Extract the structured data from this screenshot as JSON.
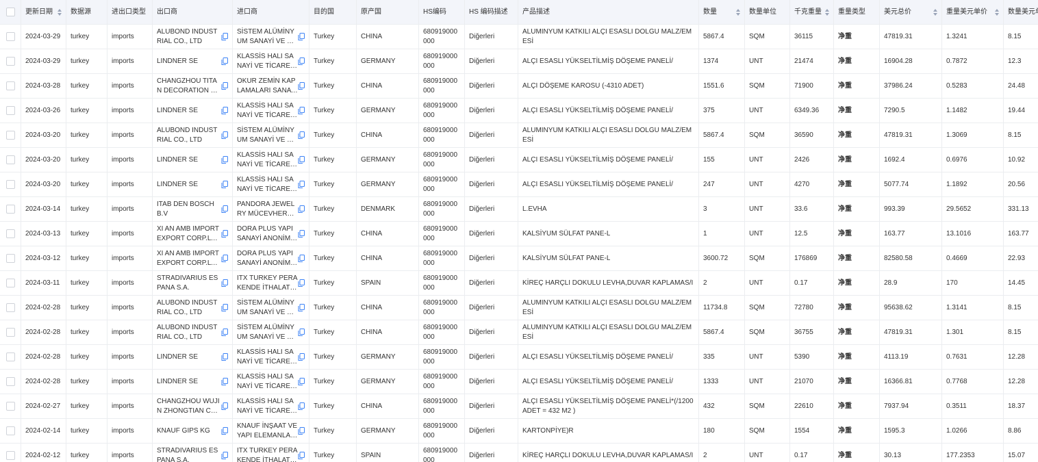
{
  "table": {
    "headers": [
      "更新日期",
      "数据源",
      "进出口类型",
      "出口商",
      "进口商",
      "目的国",
      "原产国",
      "HS编码",
      "HS 编码描述",
      "产品描述",
      "数量",
      "数量单位",
      "千克重量",
      "重量类型",
      "美元总价",
      "重量美元单价",
      "数量美元单价"
    ],
    "rows": [
      [
        "2024-03-29",
        "turkey",
        "imports",
        "ALUBOND INDUSTRIAL CO., LTD",
        "SİSTEM ALÜMİNYUM SANAYİ VE TİCARET A",
        "Turkey",
        "CHINA",
        "680919000000",
        "Diğerleri",
        "ALUMINYUM KATKILI ALÇI ESASLI DOLGU MALZ/EMESİ",
        "5867.4",
        "SQM",
        "36115",
        "净重",
        "47819.31",
        "1.3241",
        "8.15"
      ],
      [
        "2024-03-29",
        "turkey",
        "imports",
        "LINDNER SE",
        "KLASSİS HALI SANAYİ VE TİCARET ANONİM",
        "Turkey",
        "GERMANY",
        "680919000000",
        "Diğerleri",
        "ALÇI ESASLI YÜKSELTİLMİŞ DÖŞEME PANELİ/",
        "1374",
        "UNT",
        "21474",
        "净重",
        "16904.28",
        "0.7872",
        "12.3"
      ],
      [
        "2024-03-28",
        "turkey",
        "imports",
        "CHANGZHOU TITAN DECORATION MATERIAL",
        "OKUR ZEMİN KAPLAMALARI SANAYİ VE TİC",
        "Turkey",
        "CHINA",
        "680919000000",
        "Diğerleri",
        "ALÇI DÖŞEME KAROSU (-4310 ADET)",
        "1551.6",
        "SQM",
        "71900",
        "净重",
        "37986.24",
        "0.5283",
        "24.48"
      ],
      [
        "2024-03-26",
        "turkey",
        "imports",
        "LINDNER SE",
        "KLASSİS HALI SANAYİ VE TİCARET ANONİM",
        "Turkey",
        "GERMANY",
        "680919000000",
        "Diğerleri",
        "ALÇI ESASLI YÜKSELTİLMİŞ DÖŞEME PANELİ/",
        "375",
        "UNT",
        "6349.36",
        "净重",
        "7290.5",
        "1.1482",
        "19.44"
      ],
      [
        "2024-03-20",
        "turkey",
        "imports",
        "ALUBOND INDUSTRIAL CO., LTD",
        "SİSTEM ALÜMİNYUM SANAYİ VE TİCARET A",
        "Turkey",
        "CHINA",
        "680919000000",
        "Diğerleri",
        "ALUMINYUM KATKILI ALÇI ESASLI DOLGU MALZ/EMESİ",
        "5867.4",
        "SQM",
        "36590",
        "净重",
        "47819.31",
        "1.3069",
        "8.15"
      ],
      [
        "2024-03-20",
        "turkey",
        "imports",
        "LINDNER SE",
        "KLASSİS HALI SANAYİ VE TİCARET ANONİM",
        "Turkey",
        "GERMANY",
        "680919000000",
        "Diğerleri",
        "ALÇI ESASLI YÜKSELTİLMİŞ DÖŞEME PANELİ/",
        "155",
        "UNT",
        "2426",
        "净重",
        "1692.4",
        "0.6976",
        "10.92"
      ],
      [
        "2024-03-20",
        "turkey",
        "imports",
        "LINDNER SE",
        "KLASSİS HALI SANAYİ VE TİCARET ANONİM",
        "Turkey",
        "GERMANY",
        "680919000000",
        "Diğerleri",
        "ALÇI ESASLI YÜKSELTİLMİŞ DÖŞEME PANELİ/",
        "247",
        "UNT",
        "4270",
        "净重",
        "5077.74",
        "1.1892",
        "20.56"
      ],
      [
        "2024-03-14",
        "turkey",
        "imports",
        "ITAB DEN BOSCH B.V",
        "PANDORA JEWELRY MÜCEVHERAT ANONİM",
        "Turkey",
        "DENMARK",
        "680919000000",
        "Diğerleri",
        "L.EVHA",
        "3",
        "UNT",
        "33.6",
        "净重",
        "993.39",
        "29.5652",
        "331.13"
      ],
      [
        "2024-03-13",
        "turkey",
        "imports",
        "XI AN AMB IMPORT EXPORT CORP.LTD.",
        "DORA PLUS YAPI SANAYİ ANONİM ŞİRKETİ",
        "Turkey",
        "CHINA",
        "680919000000",
        "Diğerleri",
        "KALSİYUM SÜLFAT PANE-L",
        "1",
        "UNT",
        "12.5",
        "净重",
        "163.77",
        "13.1016",
        "163.77"
      ],
      [
        "2024-03-12",
        "turkey",
        "imports",
        "XI AN AMB IMPORT EXPORT CORP.LTD.",
        "DORA PLUS YAPI SANAYİ ANONİM ŞİRKETİ",
        "Turkey",
        "CHINA",
        "680919000000",
        "Diğerleri",
        "KALSİYUM SÜLFAT PANE-L",
        "3600.72",
        "SQM",
        "176869",
        "净重",
        "82580.58",
        "0.4669",
        "22.93"
      ],
      [
        "2024-03-11",
        "turkey",
        "imports",
        "STRADIVARIUS ESPANA S.A.",
        "ITX TURKEY PERAKENDE İTHALAT İHRACAT",
        "Turkey",
        "SPAIN",
        "680919000000",
        "Diğerleri",
        "KİREÇ HARÇLI DOKULU LEVHA,DUVAR KAPLAMAS/I",
        "2",
        "UNT",
        "0.17",
        "净重",
        "28.9",
        "170",
        "14.45"
      ],
      [
        "2024-02-28",
        "turkey",
        "imports",
        "ALUBOND INDUSTRIAL CO., LTD",
        "SİSTEM ALÜMİNYUM SANAYİ VE TİCARET A",
        "Turkey",
        "CHINA",
        "680919000000",
        "Diğerleri",
        "ALUMINYUM KATKILI ALÇI ESASLI DOLGU MALZ/EMESİ",
        "11734.8",
        "SQM",
        "72780",
        "净重",
        "95638.62",
        "1.3141",
        "8.15"
      ],
      [
        "2024-02-28",
        "turkey",
        "imports",
        "ALUBOND INDUSTRIAL CO., LTD",
        "SİSTEM ALÜMİNYUM SANAYİ VE TİCARET A",
        "Turkey",
        "CHINA",
        "680919000000",
        "Diğerleri",
        "ALUMINYUM KATKILI ALÇI ESASLI DOLGU MALZ/EMESİ",
        "5867.4",
        "SQM",
        "36755",
        "净重",
        "47819.31",
        "1.301",
        "8.15"
      ],
      [
        "2024-02-28",
        "turkey",
        "imports",
        "LINDNER SE",
        "KLASSİS HALI SANAYİ VE TİCARET ANONİM",
        "Turkey",
        "GERMANY",
        "680919000000",
        "Diğerleri",
        "ALÇI ESASLI YÜKSELTİLMİŞ DÖŞEME PANELİ/",
        "335",
        "UNT",
        "5390",
        "净重",
        "4113.19",
        "0.7631",
        "12.28"
      ],
      [
        "2024-02-28",
        "turkey",
        "imports",
        "LINDNER SE",
        "KLASSİS HALI SANAYİ VE TİCARET ANONİM",
        "Turkey",
        "GERMANY",
        "680919000000",
        "Diğerleri",
        "ALÇI ESASLI YÜKSELTİLMİŞ DÖŞEME PANELİ/",
        "1333",
        "UNT",
        "21070",
        "净重",
        "16366.81",
        "0.7768",
        "12.28"
      ],
      [
        "2024-02-27",
        "turkey",
        "imports",
        "CHANGZHOU WUJIN ZHONGTIAN COMPUTER",
        "KLASSİS HALI SANAYİ VE TİCARET ANONİM",
        "Turkey",
        "CHINA",
        "680919000000",
        "Diğerleri",
        "ALÇI ESASLI YÜKSELTİLMİŞ DÖŞEME PANELİ*(/1200 ADET = 432 M2 )",
        "432",
        "SQM",
        "22610",
        "净重",
        "7937.94",
        "0.3511",
        "18.37"
      ],
      [
        "2024-02-14",
        "turkey",
        "imports",
        "KNAUF GIPS KG",
        "KNAUF İNŞAAT VE YAPI ELEMANLARI SANA",
        "Turkey",
        "GERMANY",
        "680919000000",
        "Diğerleri",
        "KARTONPİYE)R",
        "180",
        "SQM",
        "1554",
        "净重",
        "1595.3",
        "1.0266",
        "8.86"
      ],
      [
        "2024-02-12",
        "turkey",
        "imports",
        "STRADIVARIUS ESPANA S.A.",
        "ITX TURKEY PERAKENDE İTHALAT İHRACAT",
        "Turkey",
        "SPAIN",
        "680919000000",
        "Diğerleri",
        "KİREÇ HARÇLI DOKULU LEVHA,DUVAR KAPLAMAS/I",
        "2",
        "UNT",
        "0.17",
        "净重",
        "30.13",
        "177.2353",
        "15.07"
      ]
    ]
  }
}
